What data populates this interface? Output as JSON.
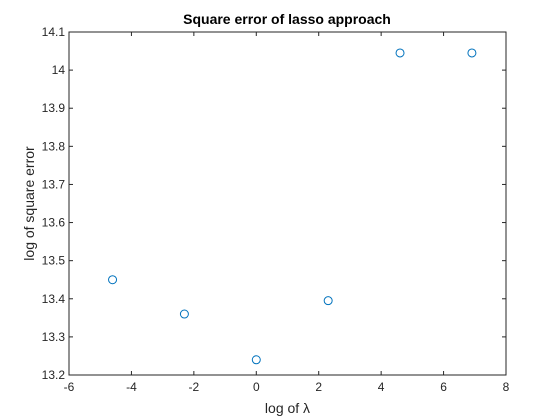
{
  "chart_data": {
    "type": "scatter",
    "title": "Square error of lasso approach",
    "xlabel": "log of λ",
    "ylabel": "log of square error",
    "xlim": [
      -6,
      8
    ],
    "ylim": [
      13.2,
      14.1
    ],
    "xticks": [
      -6,
      -4,
      -2,
      0,
      2,
      4,
      6,
      8
    ],
    "yticks": [
      13.2,
      13.3,
      13.4,
      13.5,
      13.6,
      13.7,
      13.8,
      13.9,
      14,
      14.1
    ],
    "xtick_labels": [
      "-6",
      "-4",
      "-2",
      "0",
      "2",
      "4",
      "6",
      "8"
    ],
    "ytick_labels": [
      "13.2",
      "13.3",
      "13.4",
      "13.5",
      "13.6",
      "13.7",
      "13.8",
      "13.9",
      "14",
      "14.1"
    ],
    "grid": false,
    "marker": "circle-open",
    "marker_color": "#0072BD",
    "series": [
      {
        "x": [
          -4.605,
          -2.303,
          0,
          2.303,
          4.605,
          6.908
        ],
        "y": [
          13.45,
          13.36,
          13.24,
          13.395,
          14.045,
          14.045
        ]
      }
    ]
  }
}
